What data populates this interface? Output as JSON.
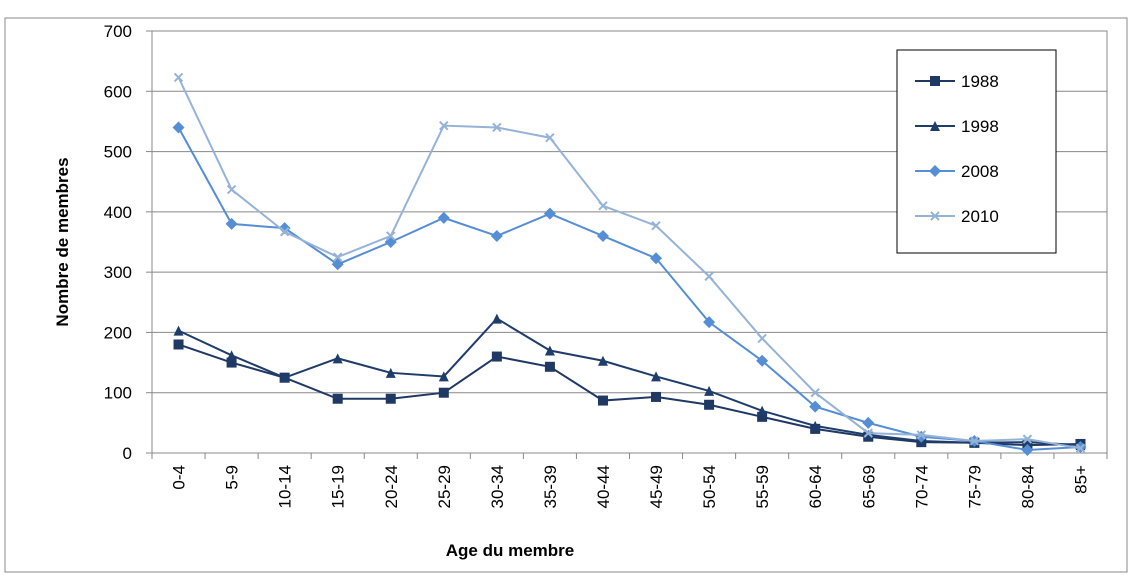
{
  "chart_data": {
    "type": "line",
    "x_label": "Age du membre",
    "y_label": "Nombre de membres",
    "categories": [
      "0-4",
      "5-9",
      "10-14",
      "15-19",
      "20-24",
      "25-29",
      "30-34",
      "35-39",
      "40-44",
      "45-49",
      "50-54",
      "55-59",
      "60-64",
      "65-69",
      "70-74",
      "75-79",
      "80-84",
      "85+"
    ],
    "series": [
      {
        "name": "1988",
        "color": "#1f3864",
        "marker": "square",
        "values": [
          180,
          150,
          125,
          90,
          90,
          100,
          160,
          143,
          87,
          93,
          80,
          60,
          40,
          27,
          18,
          17,
          13,
          15
        ]
      },
      {
        "name": "1998",
        "color": "#1f3d6b",
        "marker": "triangle",
        "values": [
          203,
          162,
          125,
          157,
          133,
          127,
          223,
          170,
          153,
          127,
          103,
          70,
          45,
          30,
          20,
          17,
          18,
          13
        ]
      },
      {
        "name": "2008",
        "color": "#558ed5",
        "marker": "diamond",
        "values": [
          540,
          380,
          373,
          313,
          350,
          390,
          360,
          397,
          360,
          323,
          217,
          153,
          77,
          50,
          27,
          20,
          5,
          10
        ]
      },
      {
        "name": "2010",
        "color": "#95b3d7",
        "marker": "x",
        "values": [
          623,
          437,
          367,
          325,
          360,
          543,
          540,
          523,
          410,
          377,
          293,
          190,
          100,
          33,
          30,
          20,
          23,
          8
        ]
      }
    ],
    "ylim": [
      0,
      700
    ],
    "yticks": [
      0,
      100,
      200,
      300,
      400,
      500,
      600,
      700
    ],
    "grid": true,
    "legend": "right"
  }
}
